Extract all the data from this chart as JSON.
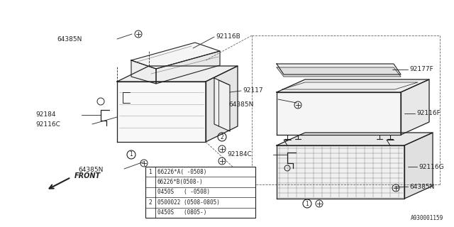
{
  "bg_color": "#ffffff",
  "fig_width": 6.4,
  "fig_height": 3.2,
  "dpi": 100,
  "catalog_id": "A930001159",
  "line_color": "#222222",
  "text_color": "#222222",
  "table_rows": [
    {
      "circle": "1",
      "text": "66226*A( -0508)"
    },
    {
      "circle": null,
      "text": "66226*B(0508-)"
    },
    {
      "circle": null,
      "text": "0450S   ( -0508)"
    },
    {
      "circle": "2",
      "text": "0500022 (0508-0805)"
    },
    {
      "circle": null,
      "text": "0450S   (0805-)"
    }
  ]
}
